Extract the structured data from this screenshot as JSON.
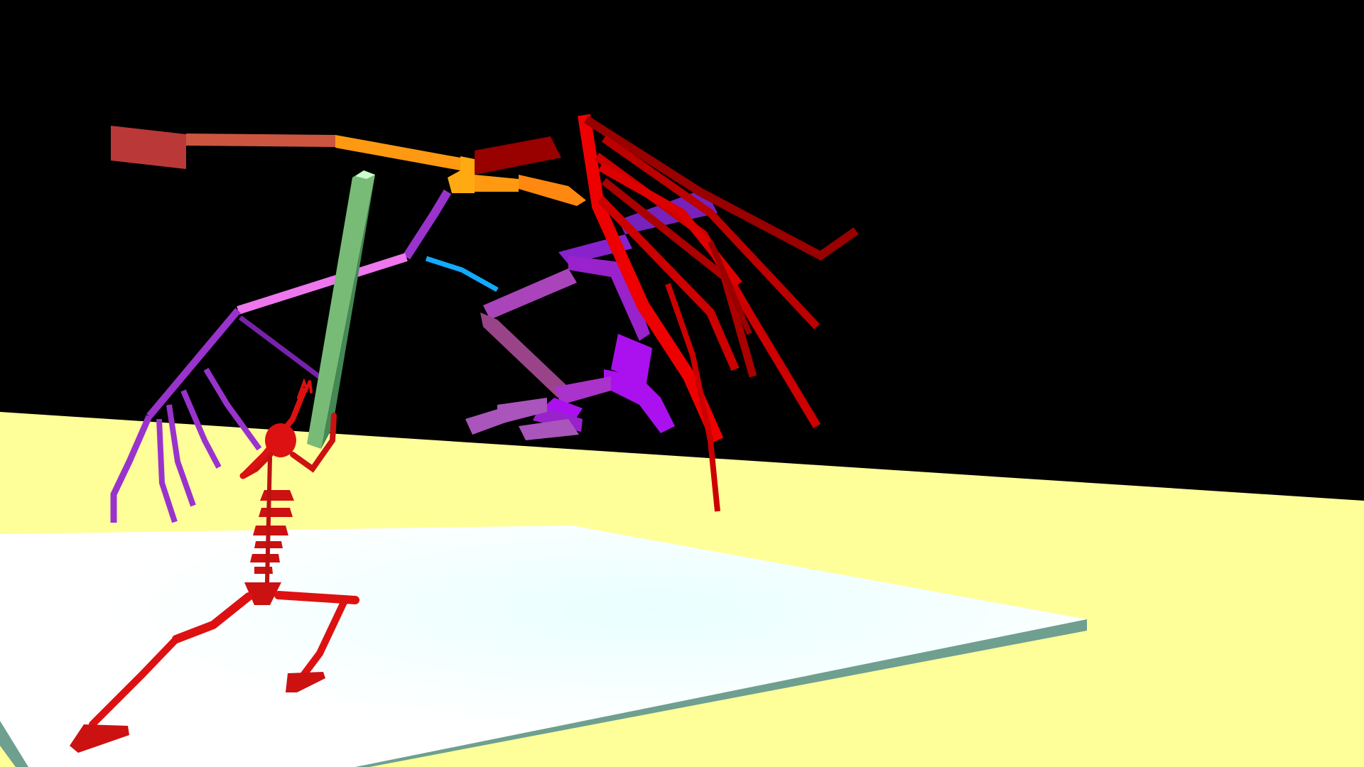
{
  "scene": {
    "description_visible_text": "",
    "colors": {
      "sky": "#000000",
      "ground": "#ffff99",
      "platform_top": "#ffffff",
      "platform_edge": "#6f9f8f",
      "humanoid": "#dd1111",
      "sword": "#77bb77",
      "creature_wing_left": "#9933cc",
      "creature_wing_left_upper": "#ee77ee",
      "creature_tail": "#bb3333",
      "creature_neck": "#ff9911",
      "creature_wing_right": "#dd0000",
      "creature_legs": "#9911cc",
      "creature_tongue": "#11aaff"
    }
  }
}
